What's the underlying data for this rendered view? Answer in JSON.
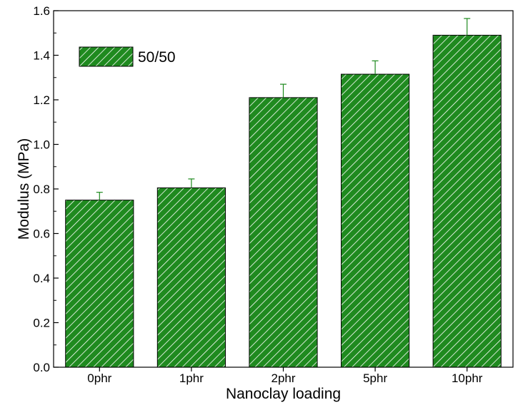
{
  "chart_data": {
    "type": "bar",
    "categories": [
      "0phr",
      "1phr",
      "2phr",
      "5phr",
      "10phr"
    ],
    "series": [
      {
        "name": "50/50",
        "values": [
          0.75,
          0.805,
          1.21,
          1.315,
          1.49
        ],
        "error": [
          0.035,
          0.04,
          0.06,
          0.06,
          0.075
        ],
        "color": "#1f8a1f",
        "pattern": "diagonal-hatch"
      }
    ],
    "xlabel": "Nanoclay loading",
    "ylabel": "Modulus (MPa)",
    "ylim": [
      0,
      1.6
    ],
    "yticks": [
      "0.0",
      "0.2",
      "0.4",
      "0.6",
      "0.8",
      "1.0",
      "1.2",
      "1.4",
      "1.6"
    ],
    "grid": false,
    "legend_position": "top-left"
  }
}
